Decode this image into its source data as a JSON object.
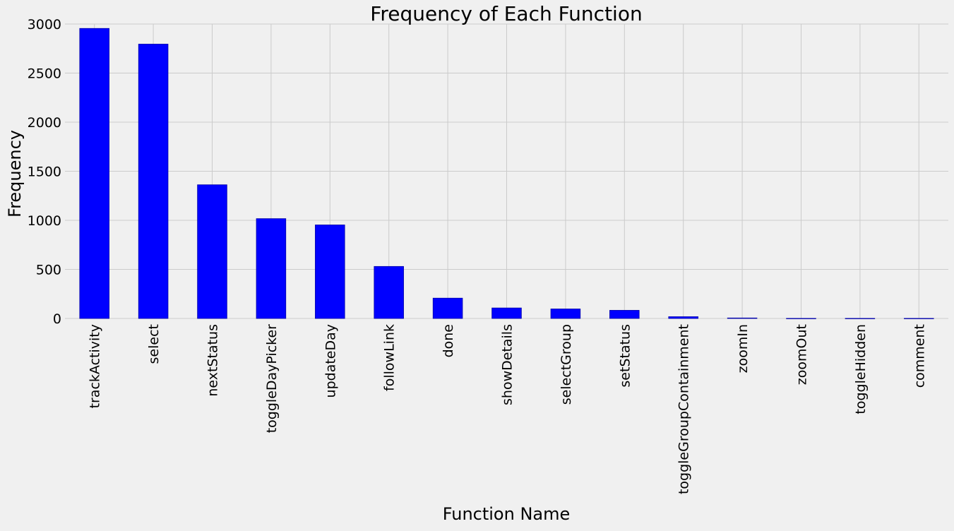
{
  "chart_data": {
    "type": "bar",
    "title": "Frequency of Each Function",
    "xlabel": "Function Name",
    "ylabel": "Frequency",
    "categories": [
      "trackActivity",
      "select",
      "nextStatus",
      "toggleDayPicker",
      "updateDay",
      "followLink",
      "done",
      "showDetails",
      "selectGroup",
      "setStatus",
      "toggleGroupContainment",
      "zoomIn",
      "zoomOut",
      "toggleHidden",
      "comment"
    ],
    "values": [
      2955,
      2795,
      1362,
      1017,
      953,
      530,
      207,
      107,
      97,
      83,
      18,
      5,
      1,
      1,
      1
    ],
    "ylim": [
      0,
      3000
    ],
    "yticks": [
      0,
      500,
      1000,
      1500,
      2000,
      2500,
      3000
    ],
    "grid": true,
    "bar_color": "#0000ff",
    "grid_color": "#cbcbcb",
    "background": "#f0f0f0"
  }
}
